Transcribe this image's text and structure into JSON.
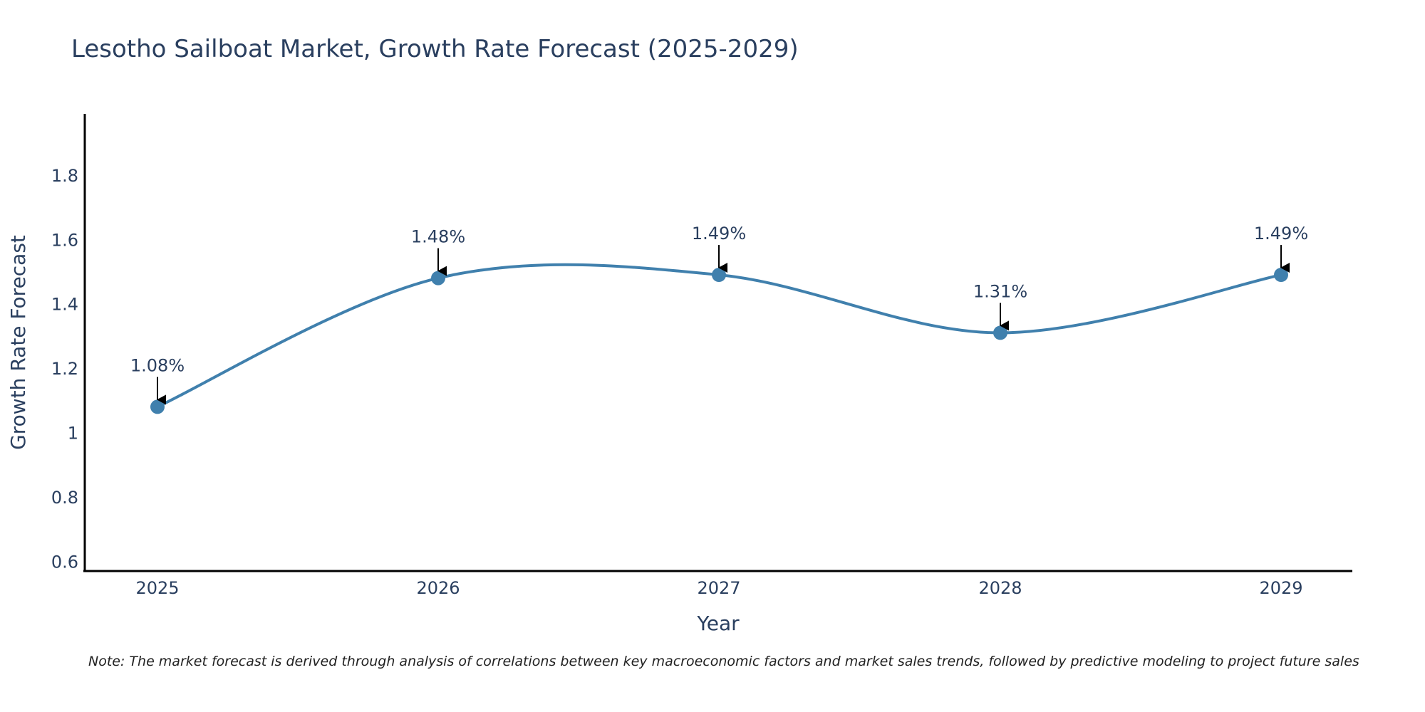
{
  "chart_data": {
    "type": "line",
    "title": "Lesotho Sailboat Market, Growth Rate Forecast (2025-2029)",
    "xlabel": "Year",
    "ylabel": "Growth Rate Forecast",
    "categories": [
      "2025",
      "2026",
      "2027",
      "2028",
      "2029"
    ],
    "series": [
      {
        "name": "Growth Rate Forecast",
        "values": [
          1.08,
          1.48,
          1.49,
          1.31,
          1.49
        ],
        "color": "#4080ad"
      }
    ],
    "data_labels": [
      "1.08%",
      "1.48%",
      "1.49%",
      "1.31%",
      "1.49%"
    ],
    "y_ticks": [
      0.6,
      0.8,
      1,
      1.2,
      1.4,
      1.6,
      1.8
    ],
    "y_tick_labels": [
      "0.6",
      "0.8",
      "1",
      "1.2",
      "1.4",
      "1.6",
      "1.8"
    ],
    "ylim": [
      0.57,
      1.99
    ],
    "grid": false,
    "line_shape": "spline",
    "annotation_color": "#000000"
  },
  "footnote": "Note: The market forecast is derived through analysis of correlations between key macroeconomic factors and market sales trends, followed by predictive modeling to project future sales"
}
